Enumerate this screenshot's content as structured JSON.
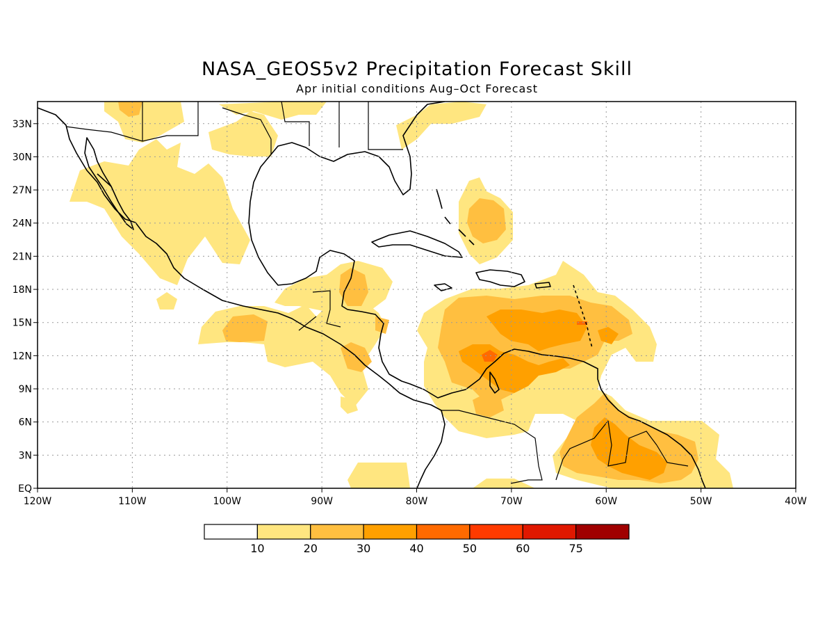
{
  "title": "NASA_GEOS5v2 Precipitation Forecast Skill",
  "subtitle": "Apr initial conditions  Aug–Oct Forecast",
  "map": {
    "lon_range": [
      -120,
      -40
    ],
    "lat_range": [
      0,
      35
    ],
    "lon_labels": [
      "120W",
      "110W",
      "100W",
      "90W",
      "80W",
      "70W",
      "60W",
      "50W",
      "40W"
    ],
    "lat_labels": [
      "EQ",
      "3N",
      "6N",
      "9N",
      "12N",
      "15N",
      "18N",
      "21N",
      "24N",
      "27N",
      "30N",
      "33N"
    ],
    "grid": "dotted"
  },
  "colorbar": {
    "labels": [
      "10",
      "20",
      "30",
      "40",
      "50",
      "60",
      "75"
    ],
    "colors": [
      "#ffffff",
      "#ffe680",
      "#ffbf40",
      "#ffa000",
      "#ff6a00",
      "#ff3a00",
      "#e01800",
      "#a00000"
    ]
  },
  "colors": {
    "level1": "#ffe680",
    "level2": "#ffbf40",
    "level3": "#ffa000",
    "level4": "#ff6a00"
  }
}
